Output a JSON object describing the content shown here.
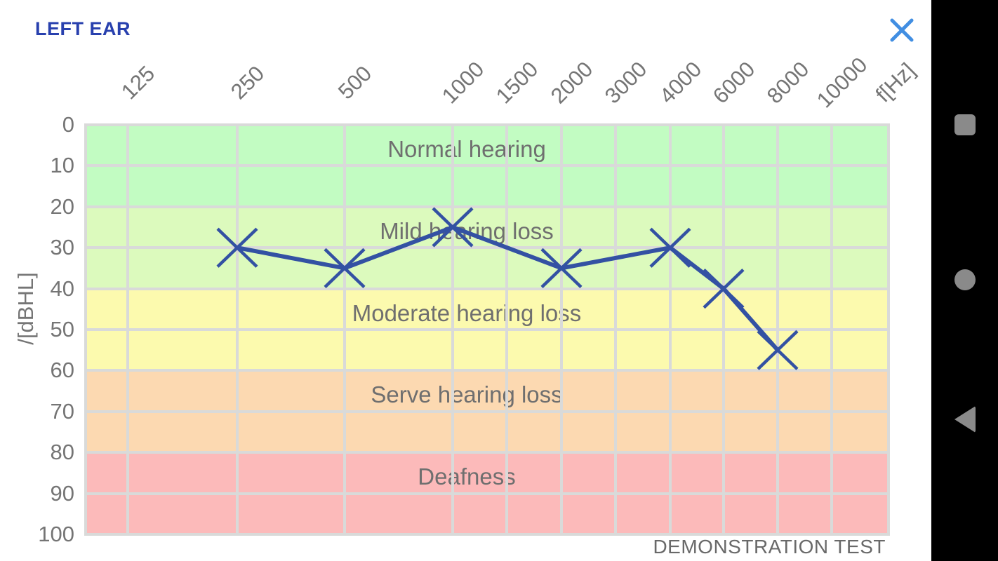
{
  "header": {
    "title": "LEFT EAR"
  },
  "footer": {
    "note": "DEMONSTRATION TEST"
  },
  "nav_bar": {
    "items": [
      {
        "name": "recents",
        "shape": "square"
      },
      {
        "name": "home",
        "shape": "circle"
      },
      {
        "name": "back",
        "shape": "triangle-left"
      }
    ]
  },
  "colors": {
    "title_blue": "#2840ae",
    "close_blue": "#418ee2",
    "line_blue": "#3351a3",
    "tick_gray": "#757575",
    "band_label_gray": "#6f6f6f",
    "gridline": "#d9dad9",
    "nav_button_gray": "#8a8a8a",
    "nav_bar_black": "#000000"
  },
  "chart_data": {
    "type": "line",
    "title": "Audiogram (left ear)",
    "x_axis_label": "f[Hz]",
    "y_axis_label": "/[dBHL]",
    "x_ticks": [
      "125",
      "250",
      "500",
      "1000",
      "1500",
      "2000",
      "3000",
      "4000",
      "6000",
      "8000",
      "10000"
    ],
    "y_ticks": [
      "0",
      "10",
      "20",
      "30",
      "40",
      "50",
      "60",
      "70",
      "80",
      "90",
      "100"
    ],
    "ylim": [
      0,
      100
    ],
    "grid": true,
    "legend_position": "none",
    "series": [
      {
        "name": "left-ear-threshold",
        "marker": "x",
        "color": "#3351a3",
        "x": [
          250,
          500,
          1000,
          2000,
          4000,
          6000,
          8000
        ],
        "y": [
          30,
          35,
          25,
          35,
          30,
          40,
          55
        ]
      }
    ],
    "bands": [
      {
        "label": "Normal hearing",
        "from": 0,
        "to": 20,
        "color": "#c2fcc2"
      },
      {
        "label": "Mild hearing loss",
        "from": 20,
        "to": 40,
        "color": "#dcfabd"
      },
      {
        "label": "Moderate hearing loss",
        "from": 40,
        "to": 60,
        "color": "#fcfaae"
      },
      {
        "label": "Serve hearing loss",
        "from": 60,
        "to": 80,
        "color": "#fcd9b1"
      },
      {
        "label": "Deafness",
        "from": 80,
        "to": 100,
        "color": "#fcbaba"
      }
    ]
  }
}
